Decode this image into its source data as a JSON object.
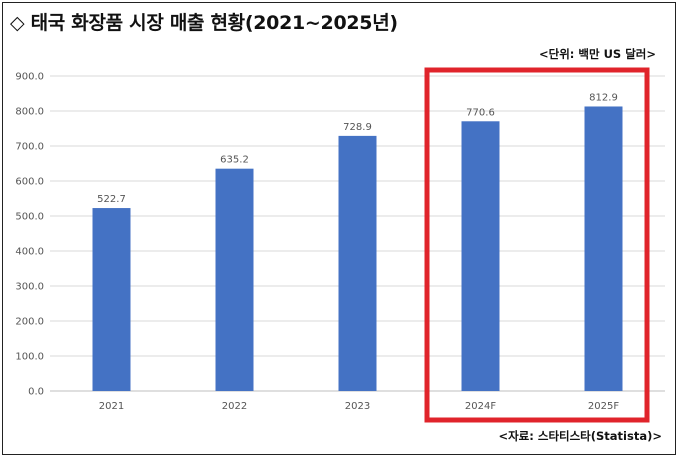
{
  "header": {
    "title": "◇ 태국 화장품 시장 매출 현황(2021~2025년)",
    "unit_note": "<단위: 백만 US 달러>",
    "source_note": "<자료: 스타티스타(Statista)>"
  },
  "chart_data": {
    "type": "bar",
    "categories": [
      "2021",
      "2022",
      "2023",
      "2024F",
      "2025F"
    ],
    "values": [
      522.7,
      635.2,
      728.9,
      770.6,
      812.9
    ],
    "value_labels": [
      "522.7",
      "635.2",
      "728.9",
      "770.6",
      "812.9"
    ],
    "y_ticks": [
      "0.0",
      "100.0",
      "200.0",
      "300.0",
      "400.0",
      "500.0",
      "600.0",
      "700.0",
      "800.0",
      "900.0"
    ],
    "ylim": [
      0,
      900
    ],
    "grid": true,
    "bar_color": "#4472c4",
    "highlight": {
      "categories": [
        "2024F",
        "2025F"
      ],
      "color": "#e0242b"
    }
  }
}
